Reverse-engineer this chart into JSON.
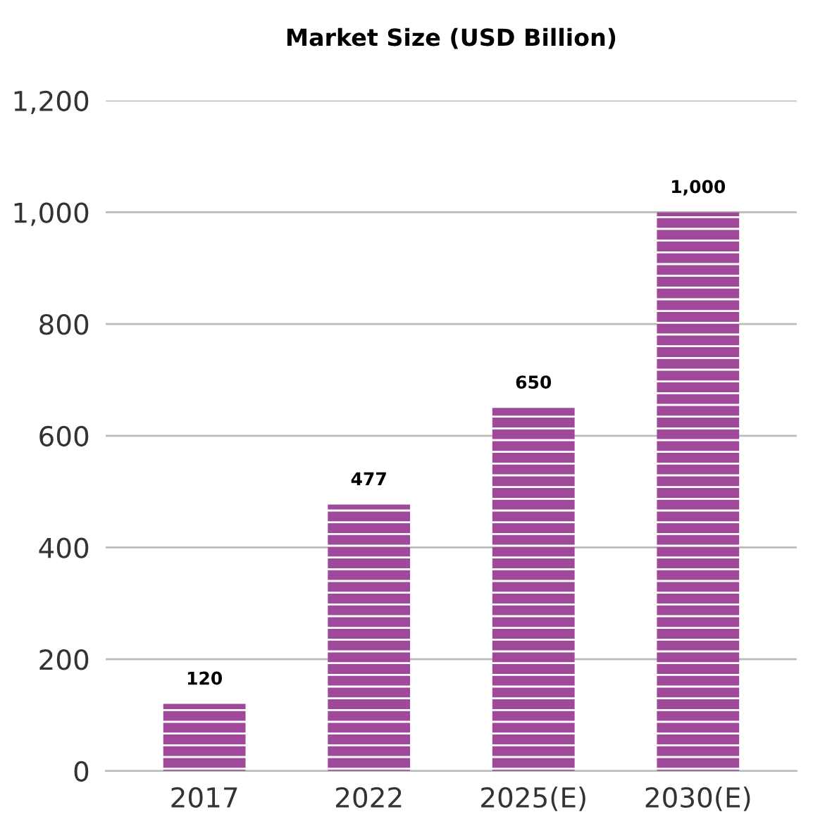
{
  "chart_data": {
    "type": "bar",
    "title": "Market Size (USD Billion)",
    "categories": [
      "2017",
      "2022",
      "2025(E)",
      "2030(E)"
    ],
    "values": [
      120,
      477,
      650,
      1000
    ],
    "color": "#a0489a",
    "ylim": [
      0,
      1200
    ],
    "yticks": [
      0,
      {
        "value": 200,
        "label": "200"
      },
      {
        "value": 400,
        "label": "400"
      },
      {
        "value": 600,
        "label": "600"
      },
      {
        "value": 800,
        "label": "800"
      },
      {
        "value": 1000,
        "label": "1,000"
      },
      {
        "value": 1200,
        "label": "1,200"
      }
    ],
    "grid": "y",
    "value_labels": [
      "120",
      "477",
      "650",
      "1,000"
    ]
  }
}
